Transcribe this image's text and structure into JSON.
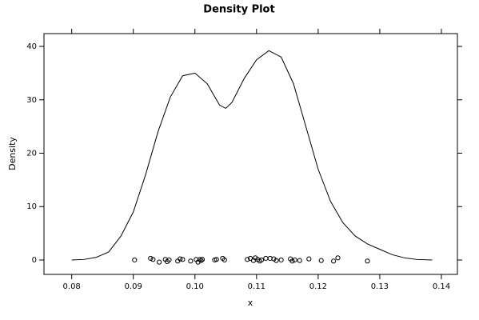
{
  "chart_data": {
    "type": "line",
    "title": "Density Plot",
    "x_label": "x",
    "y_label": "Density",
    "xlim": [
      0.0755,
      0.1426
    ],
    "ylim": [
      -2.7,
      42.4
    ],
    "xticks": [
      0.08,
      0.09,
      {
        "value": 0.1,
        "label": "0.10"
      },
      0.11,
      0.12,
      0.13,
      0.14
    ],
    "yticks": [
      0,
      10,
      20,
      30,
      40
    ],
    "series": [
      {
        "type": "line",
        "color": "#000000",
        "x": [
          0.08,
          0.082,
          0.084,
          0.086,
          0.088,
          0.09,
          0.092,
          0.094,
          0.096,
          0.098,
          0.1,
          0.102,
          0.104,
          0.105,
          0.106,
          0.108,
          0.11,
          0.112,
          0.114,
          0.116,
          0.118,
          0.12,
          0.122,
          0.124,
          0.126,
          0.128,
          0.13,
          0.132,
          0.134,
          0.136,
          0.1385
        ],
        "values": [
          0,
          0.1,
          0.5,
          1.5,
          4.5,
          9,
          16,
          24,
          30.5,
          34.5,
          35,
          33,
          29,
          28.4,
          29.5,
          34,
          37.5,
          39.2,
          38,
          33,
          25,
          17,
          11,
          7,
          4.5,
          3,
          2,
          1,
          0.4,
          0.1,
          0
        ]
      },
      {
        "type": "scatter",
        "color": "#000000",
        "x": [
          0.0902,
          0.0928,
          0.0932,
          0.0942,
          0.0952,
          0.0955,
          0.0958,
          0.0972,
          0.0976,
          0.098,
          0.0993,
          0.1002,
          0.1005,
          0.1008,
          0.101,
          0.1012,
          0.1032,
          0.1035,
          0.1045,
          0.1048,
          0.1085,
          0.109,
          0.1095,
          0.1098,
          0.1102,
          0.1105,
          0.1108,
          0.1115,
          0.1122,
          0.1128,
          0.1132,
          0.114,
          0.1155,
          0.1158,
          0.1162,
          0.117,
          0.1185,
          0.1205,
          0.1225,
          0.1232,
          0.128
        ],
        "values": [
          0,
          0.3,
          0.1,
          -0.4,
          0.1,
          -0.3,
          0,
          -0.2,
          0.2,
          0.1,
          -0.2,
          0.1,
          -0.4,
          0.1,
          -0.1,
          0.1,
          0,
          0.1,
          0.3,
          0,
          0.1,
          0.3,
          -0.1,
          0.4,
          0.1,
          -0.2,
          0,
          0.3,
          0.3,
          0.2,
          -0.1,
          0,
          0.2,
          -0.2,
          0,
          -0.1,
          0.2,
          -0.1,
          -0.2,
          0.4,
          -0.2
        ]
      }
    ]
  }
}
